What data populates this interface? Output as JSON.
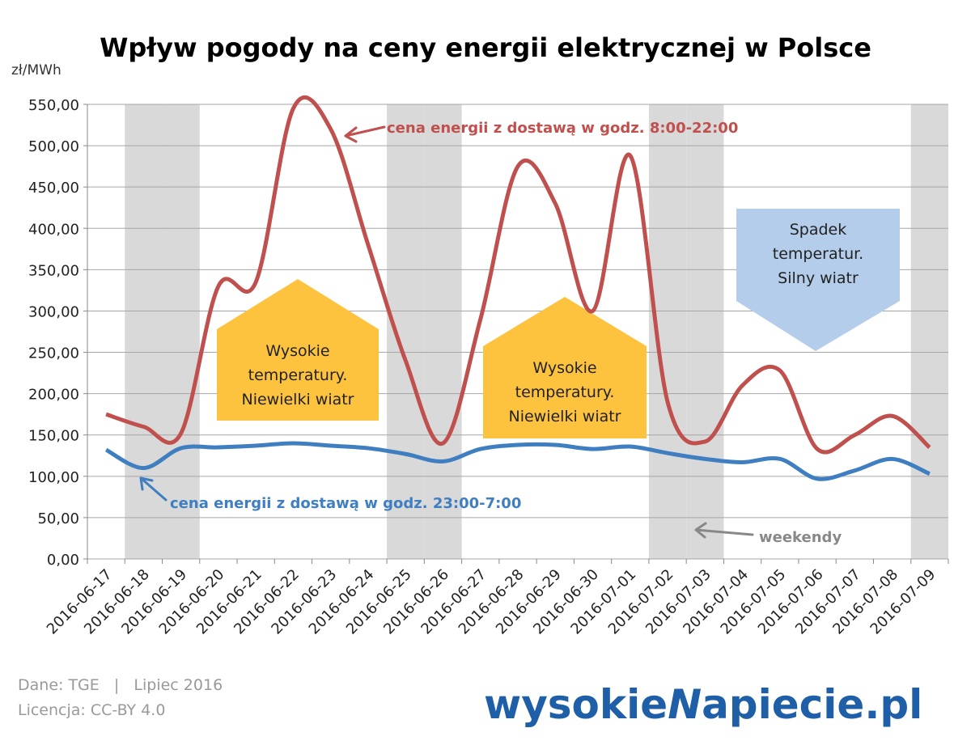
{
  "chart_data": {
    "type": "line",
    "title": "Wpływ pogody na ceny energii elektrycznej w Polsce",
    "y_unit": "zł/MWh",
    "categories": [
      "2016-06-17",
      "2016-06-18",
      "2016-06-19",
      "2016-06-20",
      "2016-06-21",
      "2016-06-22",
      "2016-06-23",
      "2016-06-24",
      "2016-06-25",
      "2016-06-26",
      "2016-06-27",
      "2016-06-28",
      "2016-06-29",
      "2016-06-30",
      "2016-07-01",
      "2016-07-02",
      "2016-07-03",
      "2016-07-04",
      "2016-07-05",
      "2016-07-06",
      "2016-07-07",
      "2016-07-08",
      "2016-07-09"
    ],
    "series": [
      {
        "name": "cena energii z dostawą w godz. 8:00-22:00",
        "color": "#c0504d",
        "values": [
          175,
          160,
          152,
          330,
          335,
          545,
          520,
          380,
          240,
          140,
          290,
          475,
          430,
          300,
          488,
          190,
          142,
          210,
          228,
          133,
          150,
          173,
          135
        ]
      },
      {
        "name": "cena energii z dostawą w godz. 23:00-7:00",
        "color": "#3f7fc1",
        "values": [
          132,
          110,
          134,
          135,
          137,
          140,
          137,
          134,
          127,
          118,
          133,
          138,
          138,
          133,
          136,
          128,
          121,
          117,
          121,
          97,
          107,
          121,
          103
        ]
      }
    ],
    "ylim": [
      0,
      550
    ],
    "yticks": [
      {
        "value": 0,
        "label": "0,00"
      },
      {
        "value": 50,
        "label": "50,00"
      },
      {
        "value": 100,
        "label": "100,00"
      },
      {
        "value": 150,
        "label": "150,00"
      },
      {
        "value": 200,
        "label": "200,00"
      },
      {
        "value": 250,
        "label": "250,00"
      },
      {
        "value": 300,
        "label": "300,00"
      },
      {
        "value": 350,
        "label": "350,00"
      },
      {
        "value": 400,
        "label": "400,00"
      },
      {
        "value": 450,
        "label": "450,00"
      },
      {
        "value": 500,
        "label": "500,00"
      },
      {
        "value": 550,
        "label": "550,00"
      }
    ],
    "grid": true,
    "smooth": true,
    "weekend_indices": [
      1,
      2,
      8,
      9,
      15,
      16,
      22
    ],
    "weekend_label": "weekendy",
    "annotations": [
      [
        "Wysokie",
        "temperatury.",
        "Niewielki wiatr"
      ],
      [
        "Wysokie",
        "temperatury.",
        "Niewielki wiatr"
      ],
      [
        "Spadek",
        "temperatur.",
        "Silny wiatr"
      ]
    ]
  },
  "footer": {
    "source": "Dane: TGE   |   Lipiec 2016",
    "license": "Licencja: CC-BY 4.0",
    "logo": [
      "wysokie",
      "N",
      "apiecie.pl"
    ]
  }
}
